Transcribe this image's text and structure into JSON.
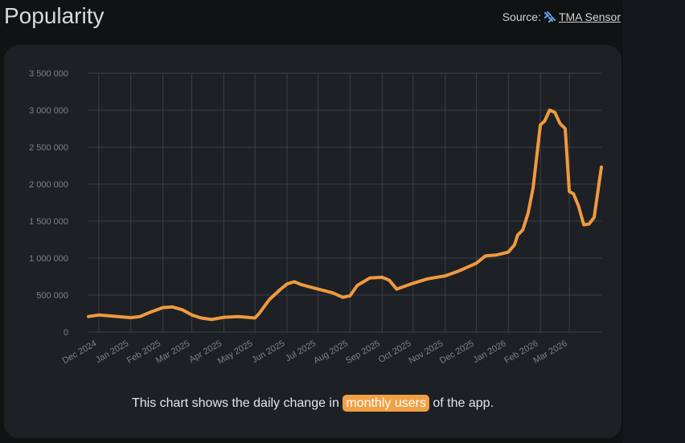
{
  "page": {
    "title": "Popularity",
    "source_prefix": "Source:",
    "source_name": "TMA Sensor",
    "source_icon": "tma-sensor-logo-icon"
  },
  "caption": {
    "before": "This chart shows the daily change in",
    "highlight": "monthly users",
    "after": "of the app."
  },
  "colors": {
    "line": "#f09a3e",
    "highlight": "#f0a045",
    "card": "#1d2125",
    "background": "#101214"
  },
  "chart_data": {
    "type": "line",
    "grid": true,
    "ylim": [
      0,
      3500000
    ],
    "y_ticks": [
      0,
      500000,
      1000000,
      1500000,
      2000000,
      2500000,
      3000000,
      3500000
    ],
    "y_tick_labels": [
      "0",
      "500 000",
      "1 000 000",
      "1 500 000",
      "2 000 000",
      "2 500 000",
      "3 000 000",
      "3 500 000"
    ],
    "x_range": [
      "2024-11-21",
      "2026-04-01"
    ],
    "x_ticks": [
      "2024-12-01",
      "2025-01-01",
      "2025-02-01",
      "2025-03-01",
      "2025-04-01",
      "2025-05-01",
      "2025-06-01",
      "2025-07-01",
      "2025-08-01",
      "2025-09-01",
      "2025-10-01",
      "2025-11-01",
      "2025-12-01",
      "2026-01-01",
      "2026-02-01",
      "2026-03-01"
    ],
    "x_tick_labels": [
      "Dec 2024",
      "Jan 2025",
      "Feb 2025",
      "Mar 2025",
      "Apr 2025",
      "May 2025",
      "Jun 2025",
      "Jul 2025",
      "Aug 2025",
      "Sep 2025",
      "Oct 2025",
      "Nov 2025",
      "Dec 2025",
      "Jan 2026",
      "Feb 2026",
      "Mar 2026"
    ],
    "series": [
      {
        "x": [
          "2024-11-21",
          "2024-12-01",
          "2024-12-15",
          "2025-01-01",
          "2025-01-10",
          "2025-01-20",
          "2025-02-01",
          "2025-02-10",
          "2025-02-20",
          "2025-03-01",
          "2025-03-10",
          "2025-03-20",
          "2025-04-01",
          "2025-04-15",
          "2025-05-01",
          "2025-05-05",
          "2025-05-15",
          "2025-05-25",
          "2025-06-01",
          "2025-06-08",
          "2025-06-15",
          "2025-07-01",
          "2025-07-15",
          "2025-07-25",
          "2025-08-01",
          "2025-08-08",
          "2025-08-20",
          "2025-09-01",
          "2025-09-08",
          "2025-09-15",
          "2025-09-25",
          "2025-10-01",
          "2025-10-15",
          "2025-11-01",
          "2025-11-15",
          "2025-12-01",
          "2025-12-10",
          "2025-12-20",
          "2026-01-01",
          "2026-01-07",
          "2026-01-10",
          "2026-01-15",
          "2026-01-20",
          "2026-01-25",
          "2026-02-01",
          "2026-02-05",
          "2026-02-10",
          "2026-02-15",
          "2026-02-20",
          "2026-02-25",
          "2026-03-01",
          "2026-03-05",
          "2026-03-10",
          "2026-03-15",
          "2026-03-20",
          "2026-03-25",
          "2026-04-01"
        ],
        "y": [
          210000,
          230000,
          215000,
          195000,
          210000,
          270000,
          330000,
          340000,
          300000,
          230000,
          190000,
          170000,
          200000,
          210000,
          190000,
          250000,
          440000,
          570000,
          650000,
          680000,
          640000,
          580000,
          530000,
          470000,
          490000,
          630000,
          730000,
          740000,
          700000,
          580000,
          630000,
          660000,
          720000,
          760000,
          830000,
          930000,
          1030000,
          1040000,
          1080000,
          1180000,
          1310000,
          1380000,
          1600000,
          1950000,
          2800000,
          2850000,
          3000000,
          2970000,
          2820000,
          2750000,
          1900000,
          1870000,
          1700000,
          1450000,
          1460000,
          1550000,
          2230000
        ]
      }
    ]
  }
}
